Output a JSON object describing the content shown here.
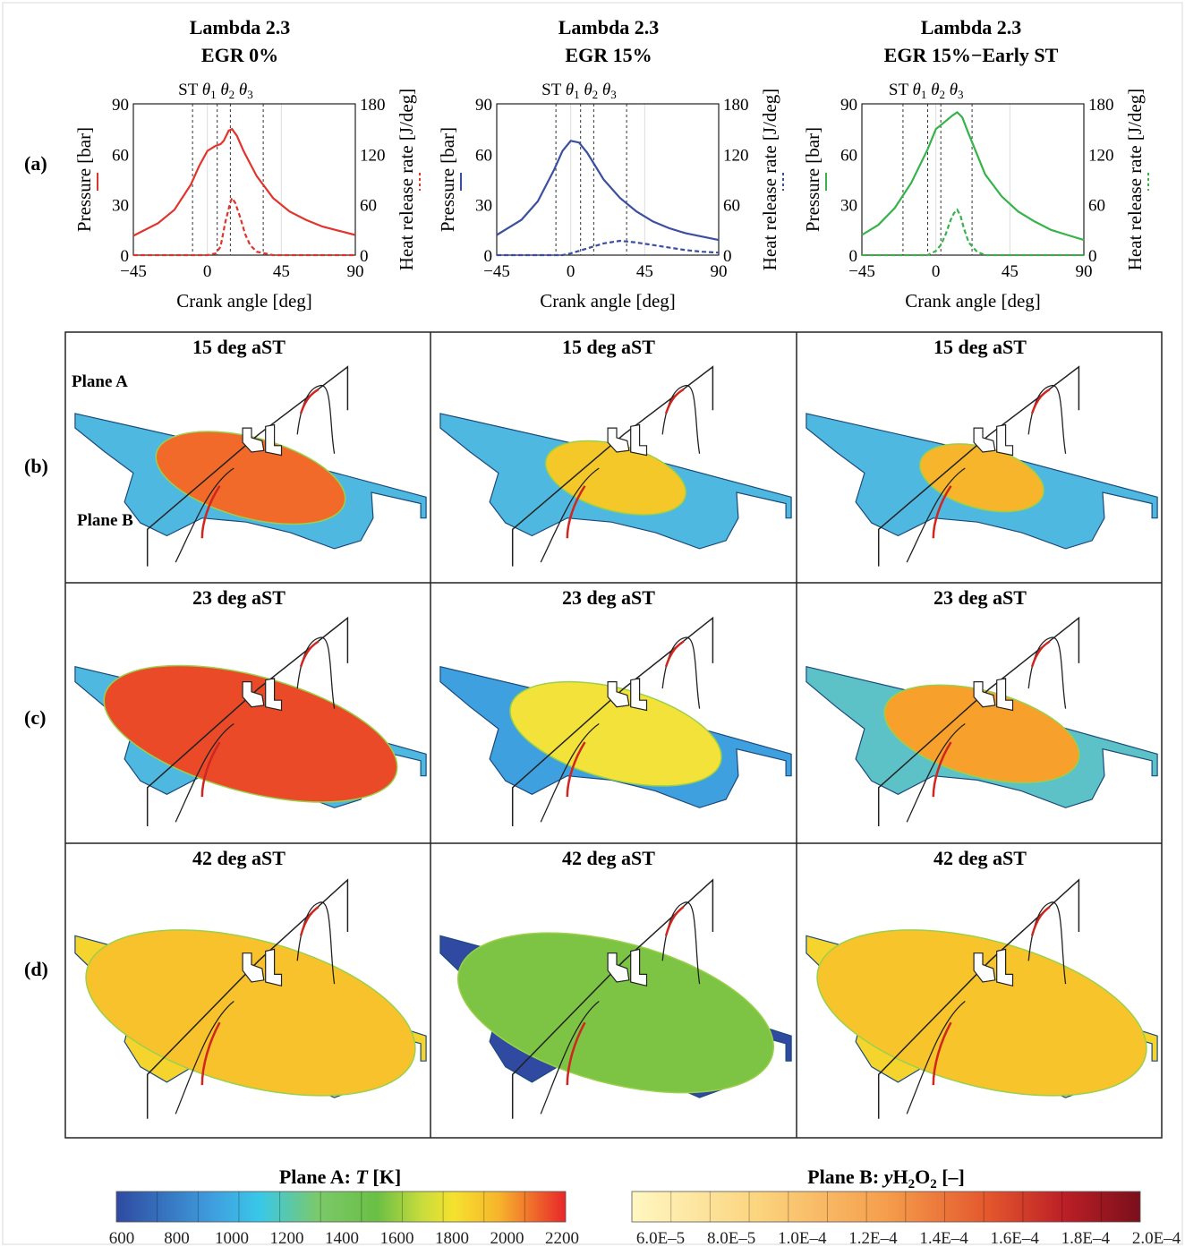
{
  "row_labels": [
    "(a)",
    "(b)",
    "(c)",
    "(d)"
  ],
  "plane_labels": {
    "a": "Plane A",
    "b": "Plane B"
  },
  "columns": [
    {
      "title1": "Lambda 2.3",
      "title2": "EGR 0%",
      "color": "#e0342c"
    },
    {
      "title1": "Lambda 2.3",
      "title2": "EGR 15%",
      "color": "#3b4fa0"
    },
    {
      "title1": "Lambda 2.3",
      "title2": "EGR 15%−Early ST",
      "color": "#36b34a"
    }
  ],
  "snapshot_titles": [
    "15 deg aST",
    "23 deg aST",
    "42 deg aST"
  ],
  "marker_labels": {
    "st": "ST",
    "t1": "θ",
    "t1_sub": "1",
    "t2": "θ",
    "t2_sub": "2",
    "t3": "θ",
    "t3_sub": "3"
  },
  "colorbars": {
    "temperature": {
      "title": "Plane A: T [K]",
      "ticks": [
        "600",
        "800",
        "1000",
        "1200",
        "1400",
        "1600",
        "1800",
        "2000",
        "2200"
      ],
      "colors": [
        "#2f4aa0",
        "#3fa0e0",
        "#39c8e8",
        "#5cc2b0",
        "#8ec84a",
        "#6abf45",
        "#c8dc3c",
        "#f5e22e",
        "#f7b52c",
        "#f26a2a",
        "#e8262a"
      ]
    },
    "h2o2": {
      "title": "Plane B: yH2O2 [–]",
      "ticks": [
        "6.0E–5",
        "8.0E–5",
        "1.0E–4",
        "1.2E–4",
        "1.4E–4",
        "1.6E–4",
        "1.8E–4",
        "2.0E–4"
      ],
      "colors": [
        "#fff7c2",
        "#fde9a0",
        "#fbd47e",
        "#f8bb62",
        "#f59e4c",
        "#ef7d3a",
        "#e4572d",
        "#d23427",
        "#bc1f26",
        "#a4161f",
        "#8e1420",
        "#7a0f1b",
        "#b2202a"
      ]
    }
  },
  "chart_data": [
    {
      "type": "line",
      "title": "Lambda 2.3 EGR 0%",
      "xlabel": "Crank angle [deg]",
      "ylabel": "Pressure [bar]",
      "y2label": "Heat release rate [J/deg]",
      "xlim": [
        -45,
        90
      ],
      "ylim": [
        0,
        90
      ],
      "y2lim": [
        0,
        180
      ],
      "xticks": [
        "−45",
        "0",
        "45",
        "90"
      ],
      "yticks": [
        "0",
        "30",
        "60",
        "90"
      ],
      "y2ticks": [
        "0",
        "60",
        "120",
        "180"
      ],
      "markers": {
        "ST": -9,
        "theta1": 6,
        "theta2": 14,
        "theta3": 34
      },
      "series": [
        {
          "axis": "left",
          "style": "solid",
          "x": [
            -45,
            -30,
            -20,
            -10,
            -5,
            0,
            5,
            8,
            10,
            13,
            15,
            18,
            22,
            30,
            40,
            50,
            60,
            70,
            80,
            90
          ],
          "y": [
            11.5,
            19,
            27,
            42,
            53,
            62,
            65,
            66,
            68,
            74,
            75,
            71,
            62,
            47,
            34,
            26,
            21,
            17,
            14.5,
            12
          ]
        },
        {
          "axis": "right",
          "style": "dashed",
          "x": [
            -45,
            0,
            5,
            8,
            11,
            14,
            15,
            17,
            20,
            23,
            26,
            30,
            40,
            90
          ],
          "y": [
            0,
            0,
            2,
            10,
            40,
            63,
            68,
            62,
            45,
            25,
            12,
            4,
            0,
            0
          ]
        }
      ]
    },
    {
      "type": "line",
      "title": "Lambda 2.3 EGR 15%",
      "xlabel": "Crank angle [deg]",
      "ylabel": "Pressure [bar]",
      "y2label": "Heat release rate [J/deg]",
      "xlim": [
        -45,
        90
      ],
      "ylim": [
        0,
        90
      ],
      "y2lim": [
        0,
        180
      ],
      "xticks": [
        "−45",
        "0",
        "45",
        "90"
      ],
      "yticks": [
        "0",
        "30",
        "60",
        "90"
      ],
      "y2ticks": [
        "0",
        "60",
        "120",
        "180"
      ],
      "markers": {
        "ST": -9,
        "theta1": 6,
        "theta2": 14,
        "theta3": 34
      },
      "series": [
        {
          "axis": "left",
          "style": "solid",
          "x": [
            -45,
            -30,
            -20,
            -10,
            -5,
            0,
            5,
            10,
            15,
            20,
            30,
            40,
            50,
            60,
            70,
            80,
            90
          ],
          "y": [
            12,
            21,
            32,
            51,
            62,
            68,
            67,
            61,
            53,
            45,
            34,
            26,
            20,
            16,
            13,
            11,
            9
          ]
        },
        {
          "axis": "right",
          "style": "dashed",
          "x": [
            -45,
            -5,
            0,
            10,
            20,
            30,
            40,
            50,
            60,
            70,
            80,
            90
          ],
          "y": [
            0,
            0,
            2,
            8,
            14,
            17,
            15,
            12,
            9,
            6,
            4,
            3
          ]
        }
      ]
    },
    {
      "type": "line",
      "title": "Lambda 2.3 EGR 15%−Early ST",
      "xlabel": "Crank angle [deg]",
      "ylabel": "Pressure [bar]",
      "y2label": "Heat release rate [J/deg]",
      "xlim": [
        -45,
        90
      ],
      "ylim": [
        0,
        90
      ],
      "y2lim": [
        0,
        180
      ],
      "xticks": [
        "−45",
        "0",
        "45",
        "90"
      ],
      "yticks": [
        "0",
        "30",
        "60",
        "90"
      ],
      "y2ticks": [
        "0",
        "60",
        "120",
        "180"
      ],
      "markers": {
        "ST": -20,
        "theta1": -5,
        "theta2": 3,
        "theta3": 22
      },
      "series": [
        {
          "axis": "left",
          "style": "solid",
          "x": [
            -45,
            -35,
            -25,
            -15,
            -5,
            0,
            5,
            10,
            13,
            16,
            20,
            25,
            30,
            40,
            50,
            60,
            70,
            80,
            90
          ],
          "y": [
            12,
            18,
            28,
            43,
            63,
            75,
            79,
            83,
            85,
            82,
            72,
            60,
            48,
            35,
            26,
            20,
            15,
            12,
            9
          ]
        },
        {
          "axis": "right",
          "style": "dashed",
          "x": [
            -45,
            -5,
            0,
            3,
            6,
            9,
            11,
            13,
            15,
            17,
            20,
            25,
            30,
            90
          ],
          "y": [
            0,
            0,
            5,
            12,
            25,
            42,
            50,
            54,
            47,
            32,
            15,
            4,
            0,
            0
          ]
        }
      ]
    }
  ]
}
